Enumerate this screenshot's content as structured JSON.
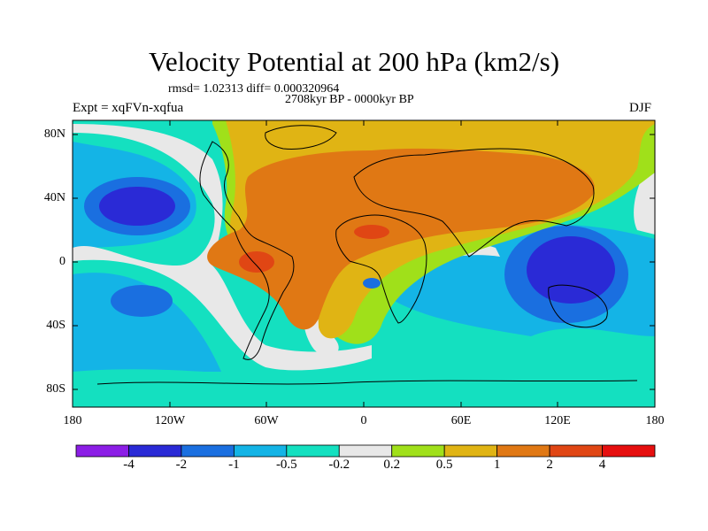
{
  "title": "Velocity Potential at 200 hPa (km2/s)",
  "stats": "rmsd= 1.02313 diff= 0.000320964",
  "period": "2708kyr BP - 0000kyr BP",
  "experiment": "Expt = xqFVn-xqfua",
  "season": "DJF",
  "lat_labels": [
    "80N",
    "40N",
    "0",
    "40S",
    "80S"
  ],
  "lon_labels": [
    "180",
    "120W",
    "60W",
    "0",
    "60E",
    "120E",
    "180"
  ],
  "colorbar": {
    "labels": [
      "-4",
      "-2",
      "-1",
      "-0.5",
      "-0.2",
      "0.2",
      "0.5",
      "1",
      "2",
      "4"
    ],
    "colors": [
      "#8c1ee6",
      "#2a2ad6",
      "#1a6fe0",
      "#14b4e6",
      "#14e0c0",
      "#e8e8e8",
      "#a0e01a",
      "#e0b414",
      "#e07814",
      "#e04614",
      "#e60f0f"
    ]
  }
}
